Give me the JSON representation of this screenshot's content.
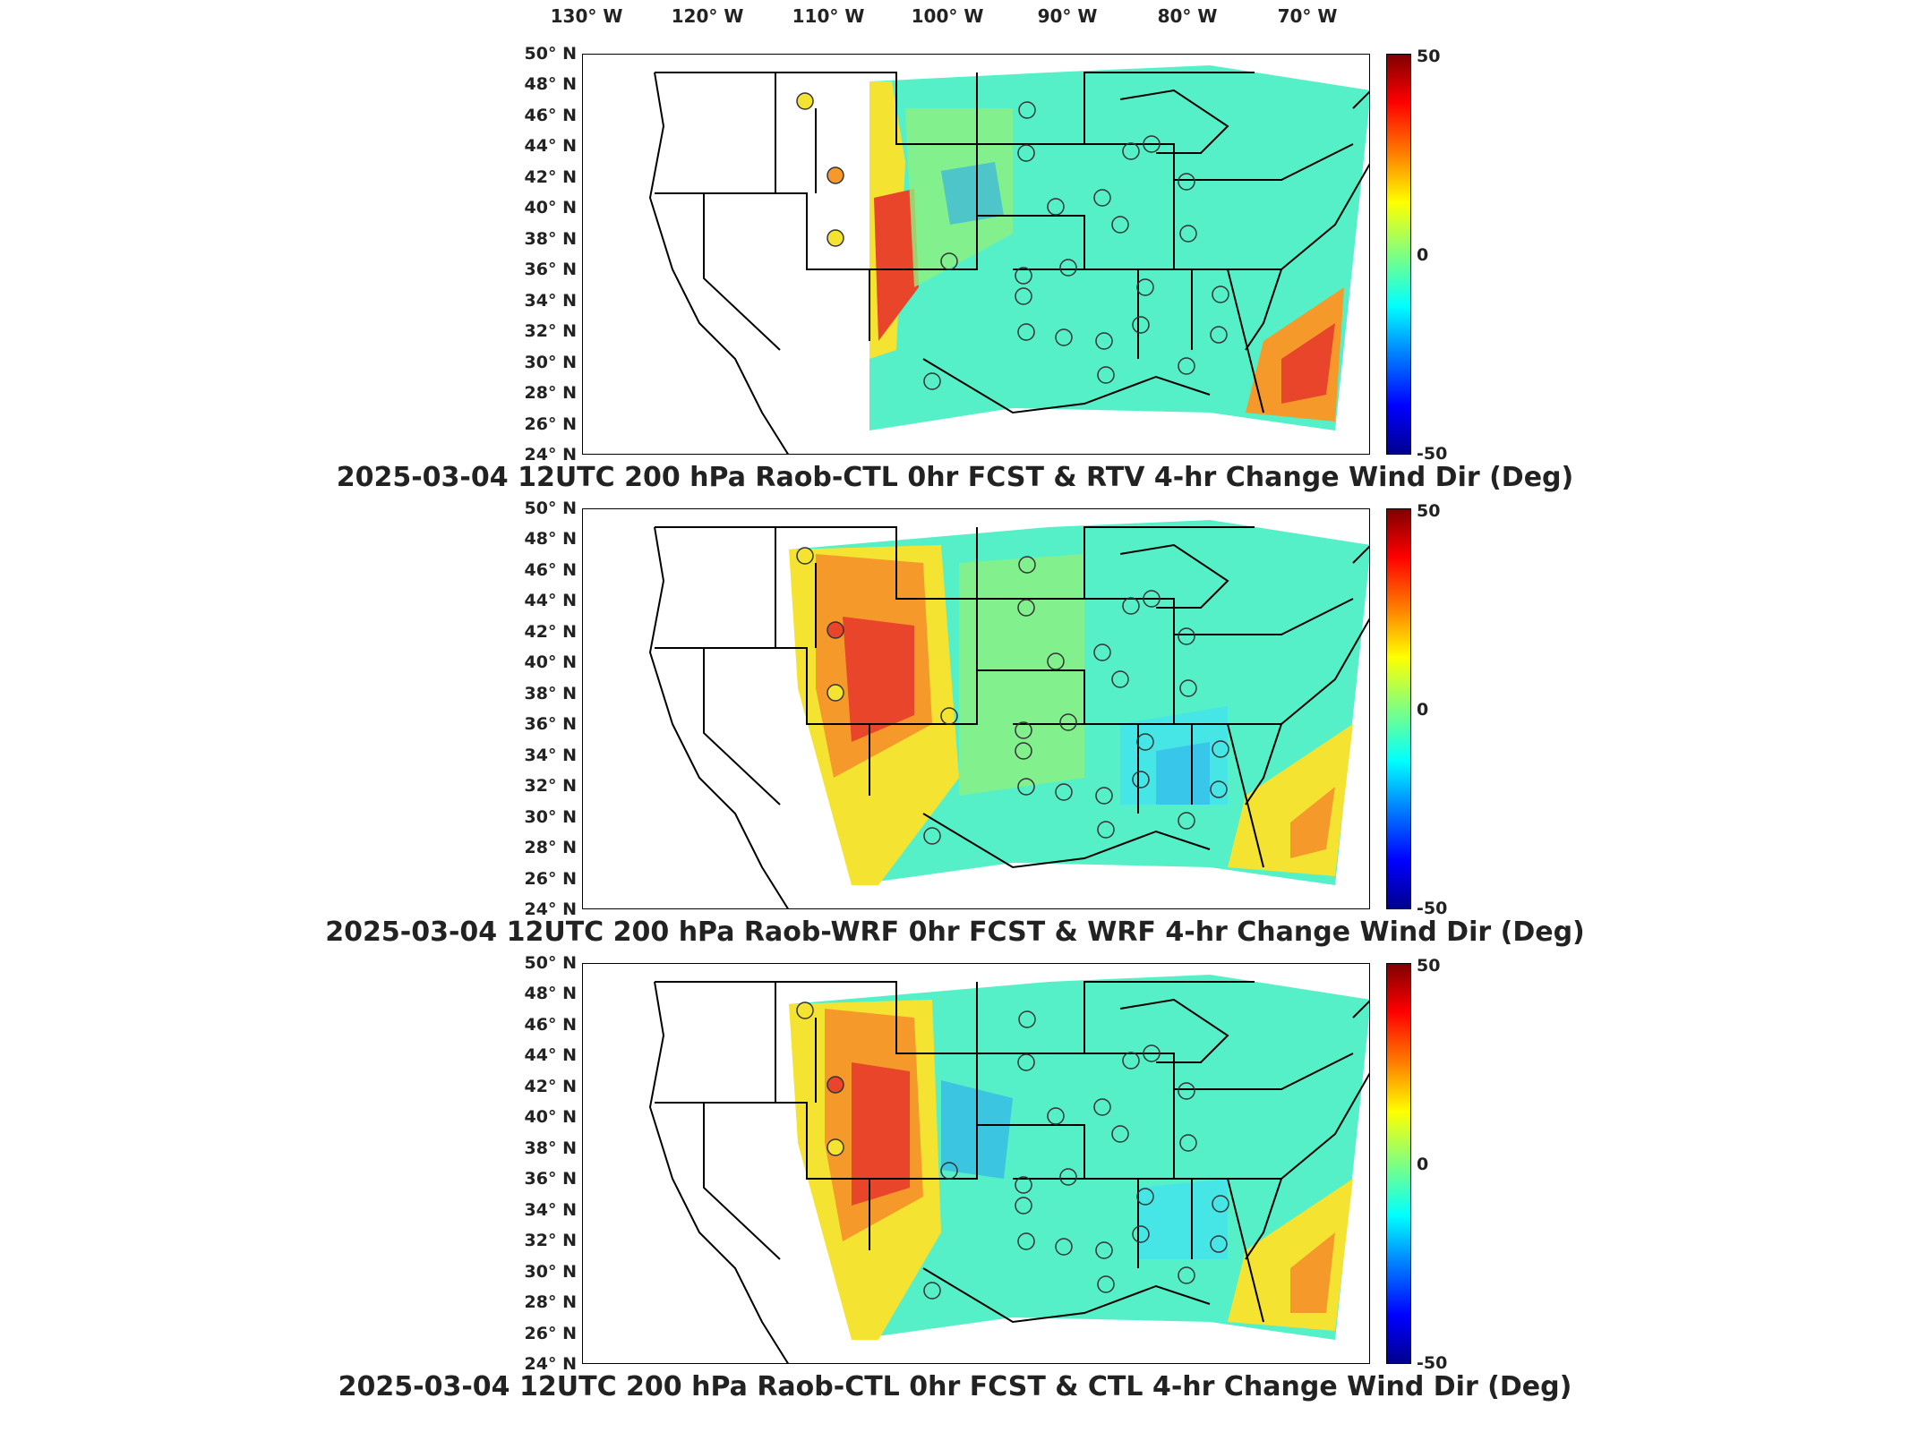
{
  "lon_labels": [
    "130° W",
    "120° W",
    "110° W",
    "100° W",
    "90° W",
    "80° W",
    "70° W"
  ],
  "lat_labels": [
    "50° N",
    "48° N",
    "46° N",
    "44° N",
    "42° N",
    "40° N",
    "38° N",
    "36° N",
    "34° N",
    "32° N",
    "30° N",
    "28° N",
    "26° N",
    "24° N"
  ],
  "colorbar": {
    "max": "50",
    "mid": "0",
    "min": "-50"
  },
  "panels": [
    {
      "title": "2025-03-04 12UTC 200 hPa Raob-CTL 0hr FCST & RTV 4-hr Change Wind Dir (Deg)"
    },
    {
      "title": "2025-03-04 12UTC 200 hPa Raob-WRF 0hr FCST & WRF 4-hr Change Wind Dir (Deg)"
    },
    {
      "title": "2025-03-04 12UTC 200 hPa Raob-CTL 0hr FCST & CTL 4-hr Change Wind Dir (Deg)"
    }
  ],
  "colors": {
    "warm": "#e8452a",
    "orange": "#f59a2a",
    "yellow": "#f5e332",
    "green": "#8ff080",
    "aqua": "#55f0c8",
    "cyan": "#46e6e6",
    "blue": "#2aa8f0"
  }
}
